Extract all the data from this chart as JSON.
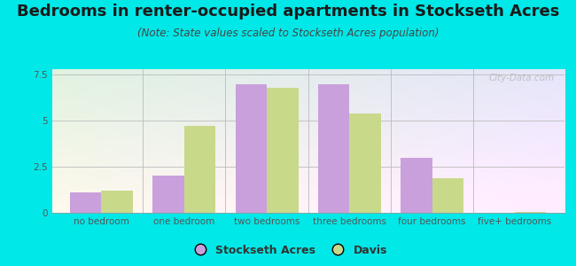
{
  "title": "Bedrooms in renter-occupied apartments in Stockseth Acres",
  "subtitle": "(Note: State values scaled to Stockseth Acres population)",
  "categories": [
    "no bedroom",
    "one bedroom",
    "two bedrooms",
    "three bedrooms",
    "four bedrooms",
    "five+ bedrooms"
  ],
  "stockseth_values": [
    1.1,
    2.0,
    7.0,
    7.0,
    3.0,
    0.0
  ],
  "davis_values": [
    1.2,
    4.7,
    6.8,
    5.4,
    1.9,
    0.05
  ],
  "stockseth_color": "#c9a0dc",
  "davis_color": "#c8d98a",
  "background_outer": "#00e8e8",
  "ylim": [
    0,
    7.8
  ],
  "yticks": [
    0,
    2.5,
    5,
    7.5
  ],
  "bar_width": 0.38,
  "title_fontsize": 13,
  "subtitle_fontsize": 8.5,
  "legend_fontsize": 9,
  "tick_fontsize": 7.5,
  "watermark": "City-Data.com"
}
